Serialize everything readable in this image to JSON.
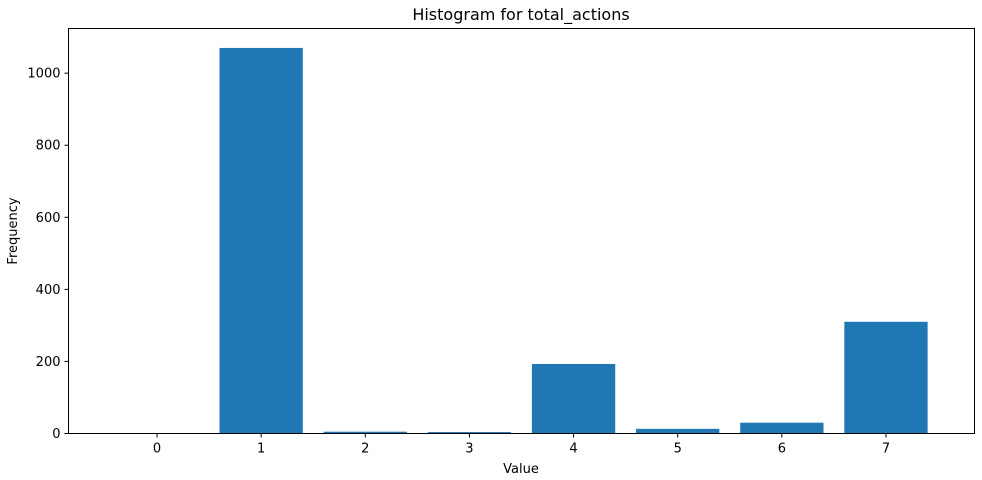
{
  "chart_data": {
    "type": "bar",
    "title": "Histogram for total_actions",
    "xlabel": "Value",
    "ylabel": "Frequency",
    "categories": [
      "0",
      "1",
      "2",
      "3",
      "4",
      "5",
      "6",
      "7"
    ],
    "x": [
      0,
      1,
      2,
      3,
      4,
      5,
      6,
      7
    ],
    "values": [
      0,
      1070,
      5,
      4,
      193,
      13,
      30,
      310
    ],
    "ylim": [
      0,
      1124
    ],
    "xlim": [
      -0.85,
      7.85
    ],
    "yticks": [
      0,
      200,
      400,
      600,
      800,
      1000
    ],
    "ytick_labels": [
      "0",
      "200",
      "400",
      "600",
      "800",
      "1000"
    ],
    "bar_width": 0.8,
    "bar_color": "#1f77b4",
    "grid": false,
    "legend": "none"
  }
}
